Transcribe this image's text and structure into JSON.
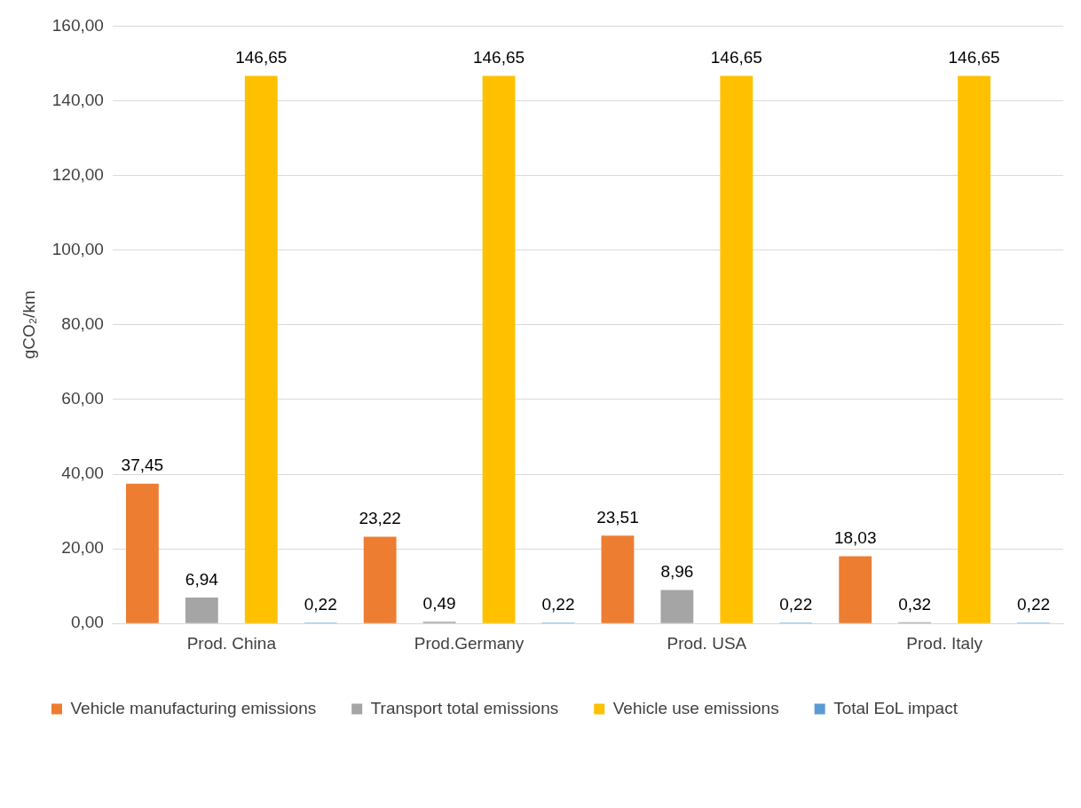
{
  "chart_data": {
    "type": "bar",
    "ylabel": "gCO₂/km",
    "categories": [
      "Prod. China",
      "Prod.Germany",
      "Prod. USA",
      "Prod. Italy"
    ],
    "series": [
      {
        "name": "Vehicle manufacturing emissions",
        "color": "#ed7d31",
        "values": [
          37.45,
          23.22,
          23.51,
          18.03
        ],
        "value_labels": [
          "37,45",
          "23,22",
          "23,51",
          "18,03"
        ]
      },
      {
        "name": "Transport total emissions",
        "color": "#a5a5a5",
        "values": [
          6.94,
          0.49,
          8.96,
          0.32
        ],
        "value_labels": [
          "6,94",
          "0,49",
          "8,96",
          "0,32"
        ]
      },
      {
        "name": "Vehicle use emissions",
        "color": "#ffc000",
        "values": [
          146.65,
          146.65,
          146.65,
          146.65
        ],
        "value_labels": [
          "146,65",
          "146,65",
          "146,65",
          "146,65"
        ]
      },
      {
        "name": "Total EoL impact",
        "color": "#5b9bd5",
        "values": [
          0.22,
          0.22,
          0.22,
          0.22
        ],
        "value_labels": [
          "0,22",
          "0,22",
          "0,22",
          "0,22"
        ]
      }
    ],
    "ylim": [
      0,
      160
    ],
    "yticks": [
      {
        "value": 0,
        "label": "0,00"
      },
      {
        "value": 20,
        "label": "20,00"
      },
      {
        "value": 40,
        "label": "40,00"
      },
      {
        "value": 60,
        "label": "60,00"
      },
      {
        "value": 80,
        "label": "80,00"
      },
      {
        "value": 100,
        "label": "100,00"
      },
      {
        "value": 120,
        "label": "120,00"
      },
      {
        "value": 140,
        "label": "140,00"
      },
      {
        "value": 160,
        "label": "160,00"
      }
    ],
    "grid": "y",
    "legend": "bottom"
  }
}
